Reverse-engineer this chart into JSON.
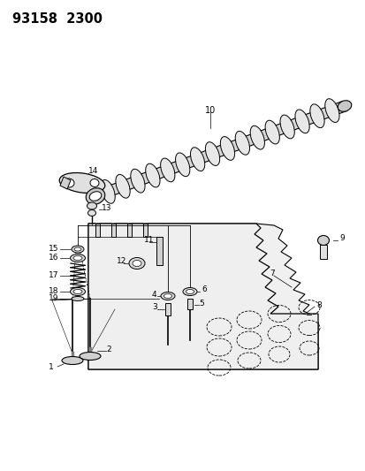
{
  "title": "93158  2300",
  "bg": "#ffffff",
  "lc": "#000000",
  "fig_w": 4.14,
  "fig_h": 5.33,
  "dpi": 100
}
